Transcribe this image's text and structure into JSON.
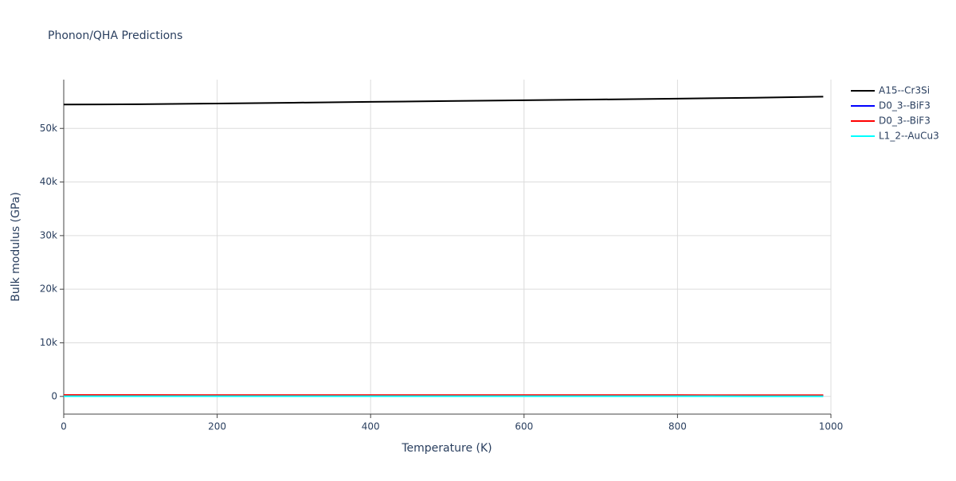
{
  "chart_data": {
    "type": "line",
    "title": "Phonon/QHA Predictions",
    "x_label": "Temperature (K)",
    "y_label": "Bulk modulus (GPa)",
    "x": [
      0,
      100,
      200,
      300,
      400,
      500,
      600,
      700,
      800,
      900,
      990
    ],
    "series": [
      {
        "name": "A15--Cr3Si",
        "color": "#000000",
        "values": [
          54450,
          54520,
          54650,
          54800,
          54950,
          55100,
          55250,
          55400,
          55550,
          55720,
          55930
        ]
      },
      {
        "name": "D0_3--BiF3",
        "color": "#0000ff",
        "values": [
          200,
          198,
          196,
          194,
          192,
          190,
          187,
          184,
          181,
          178,
          175
        ]
      },
      {
        "name": "D0_3--BiF3",
        "color": "#ff0000",
        "values": [
          260,
          258,
          256,
          253,
          250,
          247,
          244,
          241,
          238,
          235,
          232
        ]
      },
      {
        "name": "L1_2--AuCu3",
        "color": "#00ffff",
        "values": [
          50,
          49,
          47,
          45,
          43,
          41,
          39,
          37,
          35,
          33,
          31
        ]
      }
    ],
    "xlim": [
      0,
      1000
    ],
    "xticks": [
      0,
      200,
      400,
      600,
      800,
      1000
    ],
    "ylim": [
      -3300,
      59100
    ],
    "yticks": [
      0,
      {
        "value": 10000,
        "label": "10k"
      },
      {
        "value": 20000,
        "label": "20k"
      },
      {
        "value": 30000,
        "label": "30k"
      },
      {
        "value": 40000,
        "label": "40k"
      },
      {
        "value": 50000,
        "label": "50k"
      }
    ],
    "grid": true,
    "legend": "top-right"
  }
}
